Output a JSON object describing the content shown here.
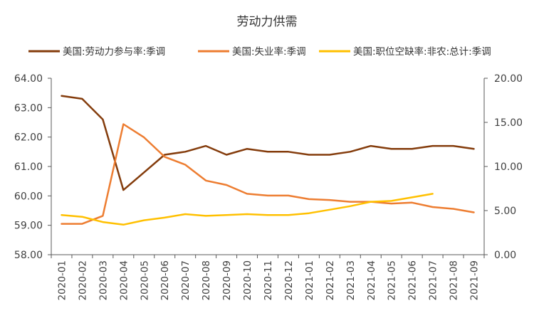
{
  "chart_data": {
    "type": "line",
    "title": "劳动力供需",
    "categories": [
      "2020-01",
      "2020-02",
      "2020-03",
      "2020-04",
      "2020-05",
      "2020-06",
      "2020-07",
      "2020-08",
      "2020-09",
      "2020-10",
      "2020-11",
      "2020-12",
      "2021-01",
      "2021-02",
      "2021-03",
      "2021-04",
      "2021-05",
      "2021-06",
      "2021-07",
      "2021-08",
      "2021-09"
    ],
    "left_axis": {
      "min": 58,
      "max": 64,
      "ticks": [
        "58.00",
        "59.00",
        "60.00",
        "61.00",
        "62.00",
        "63.00",
        "64.00"
      ]
    },
    "right_axis": {
      "min": 0,
      "max": 20,
      "ticks": [
        "0.00",
        "5.00",
        "10.00",
        "15.00",
        "20.00"
      ]
    },
    "series": [
      {
        "name": "美国:劳动力参与率:季调",
        "axis": "left",
        "color": "#843C0C",
        "values": [
          63.4,
          63.3,
          62.6,
          60.2,
          60.8,
          61.4,
          61.5,
          61.7,
          61.4,
          61.6,
          61.5,
          61.5,
          61.4,
          61.4,
          61.5,
          61.7,
          61.6,
          61.6,
          61.7,
          61.7,
          61.6
        ]
      },
      {
        "name": "美国:失业率:季调",
        "axis": "right",
        "color": "#ED7D31",
        "values": [
          3.5,
          3.5,
          4.4,
          14.8,
          13.3,
          11.1,
          10.2,
          8.4,
          7.9,
          6.9,
          6.7,
          6.7,
          6.3,
          6.2,
          6.0,
          6.0,
          5.8,
          5.9,
          5.4,
          5.2,
          4.8
        ]
      },
      {
        "name": "美国:职位空缺率:非农:总计:季调",
        "axis": "right",
        "color": "#FFC000",
        "values": [
          4.5,
          4.3,
          3.7,
          3.4,
          3.9,
          4.2,
          4.6,
          4.4,
          4.5,
          4.6,
          4.5,
          4.5,
          4.7,
          5.1,
          5.5,
          6.0,
          6.1,
          6.5,
          6.9,
          null,
          null
        ]
      }
    ],
    "legend_position": "top",
    "grid": false
  }
}
